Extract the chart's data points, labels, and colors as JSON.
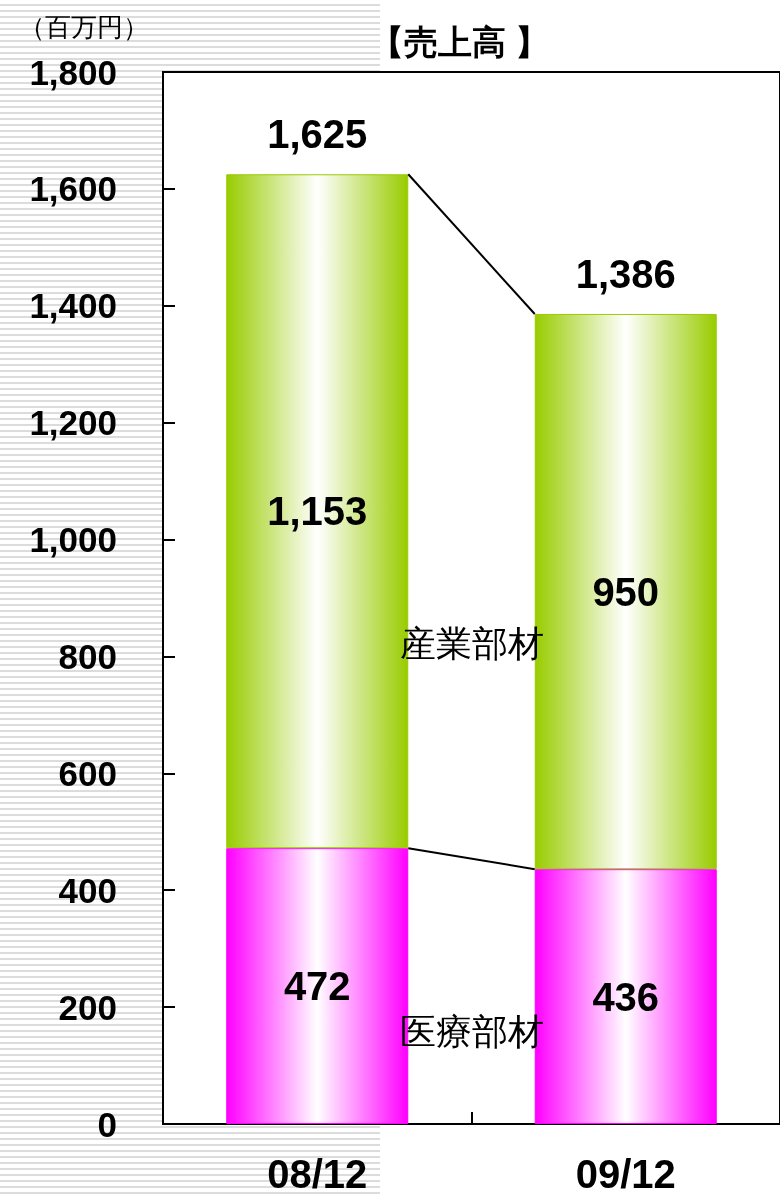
{
  "chart_data": {
    "type": "bar",
    "title": "【売上高 】",
    "ylabel": "（百万円）",
    "categories": [
      "08/12",
      "09/12"
    ],
    "stacked": true,
    "series": [
      {
        "name": "医療部材",
        "color": "#ff00ff",
        "values": [
          472,
          436
        ],
        "value_labels": [
          "472",
          "436"
        ]
      },
      {
        "name": "産業部材",
        "color": "#99cc00",
        "values": [
          1153,
          950
        ],
        "value_labels": [
          "1,153",
          "950"
        ]
      }
    ],
    "totals": [
      "1,625",
      "1,386"
    ],
    "ylim": [
      0,
      1800
    ],
    "yticks": [
      0,
      200,
      400,
      600,
      800,
      {
        "value": 1000,
        "label": "1,000"
      },
      {
        "value": 1200,
        "label": "1,200"
      },
      {
        "value": 1400,
        "label": "1,400"
      },
      {
        "value": 1600,
        "label": "1,600"
      },
      {
        "value": 1800,
        "label": "1,800"
      }
    ],
    "grid": false
  }
}
